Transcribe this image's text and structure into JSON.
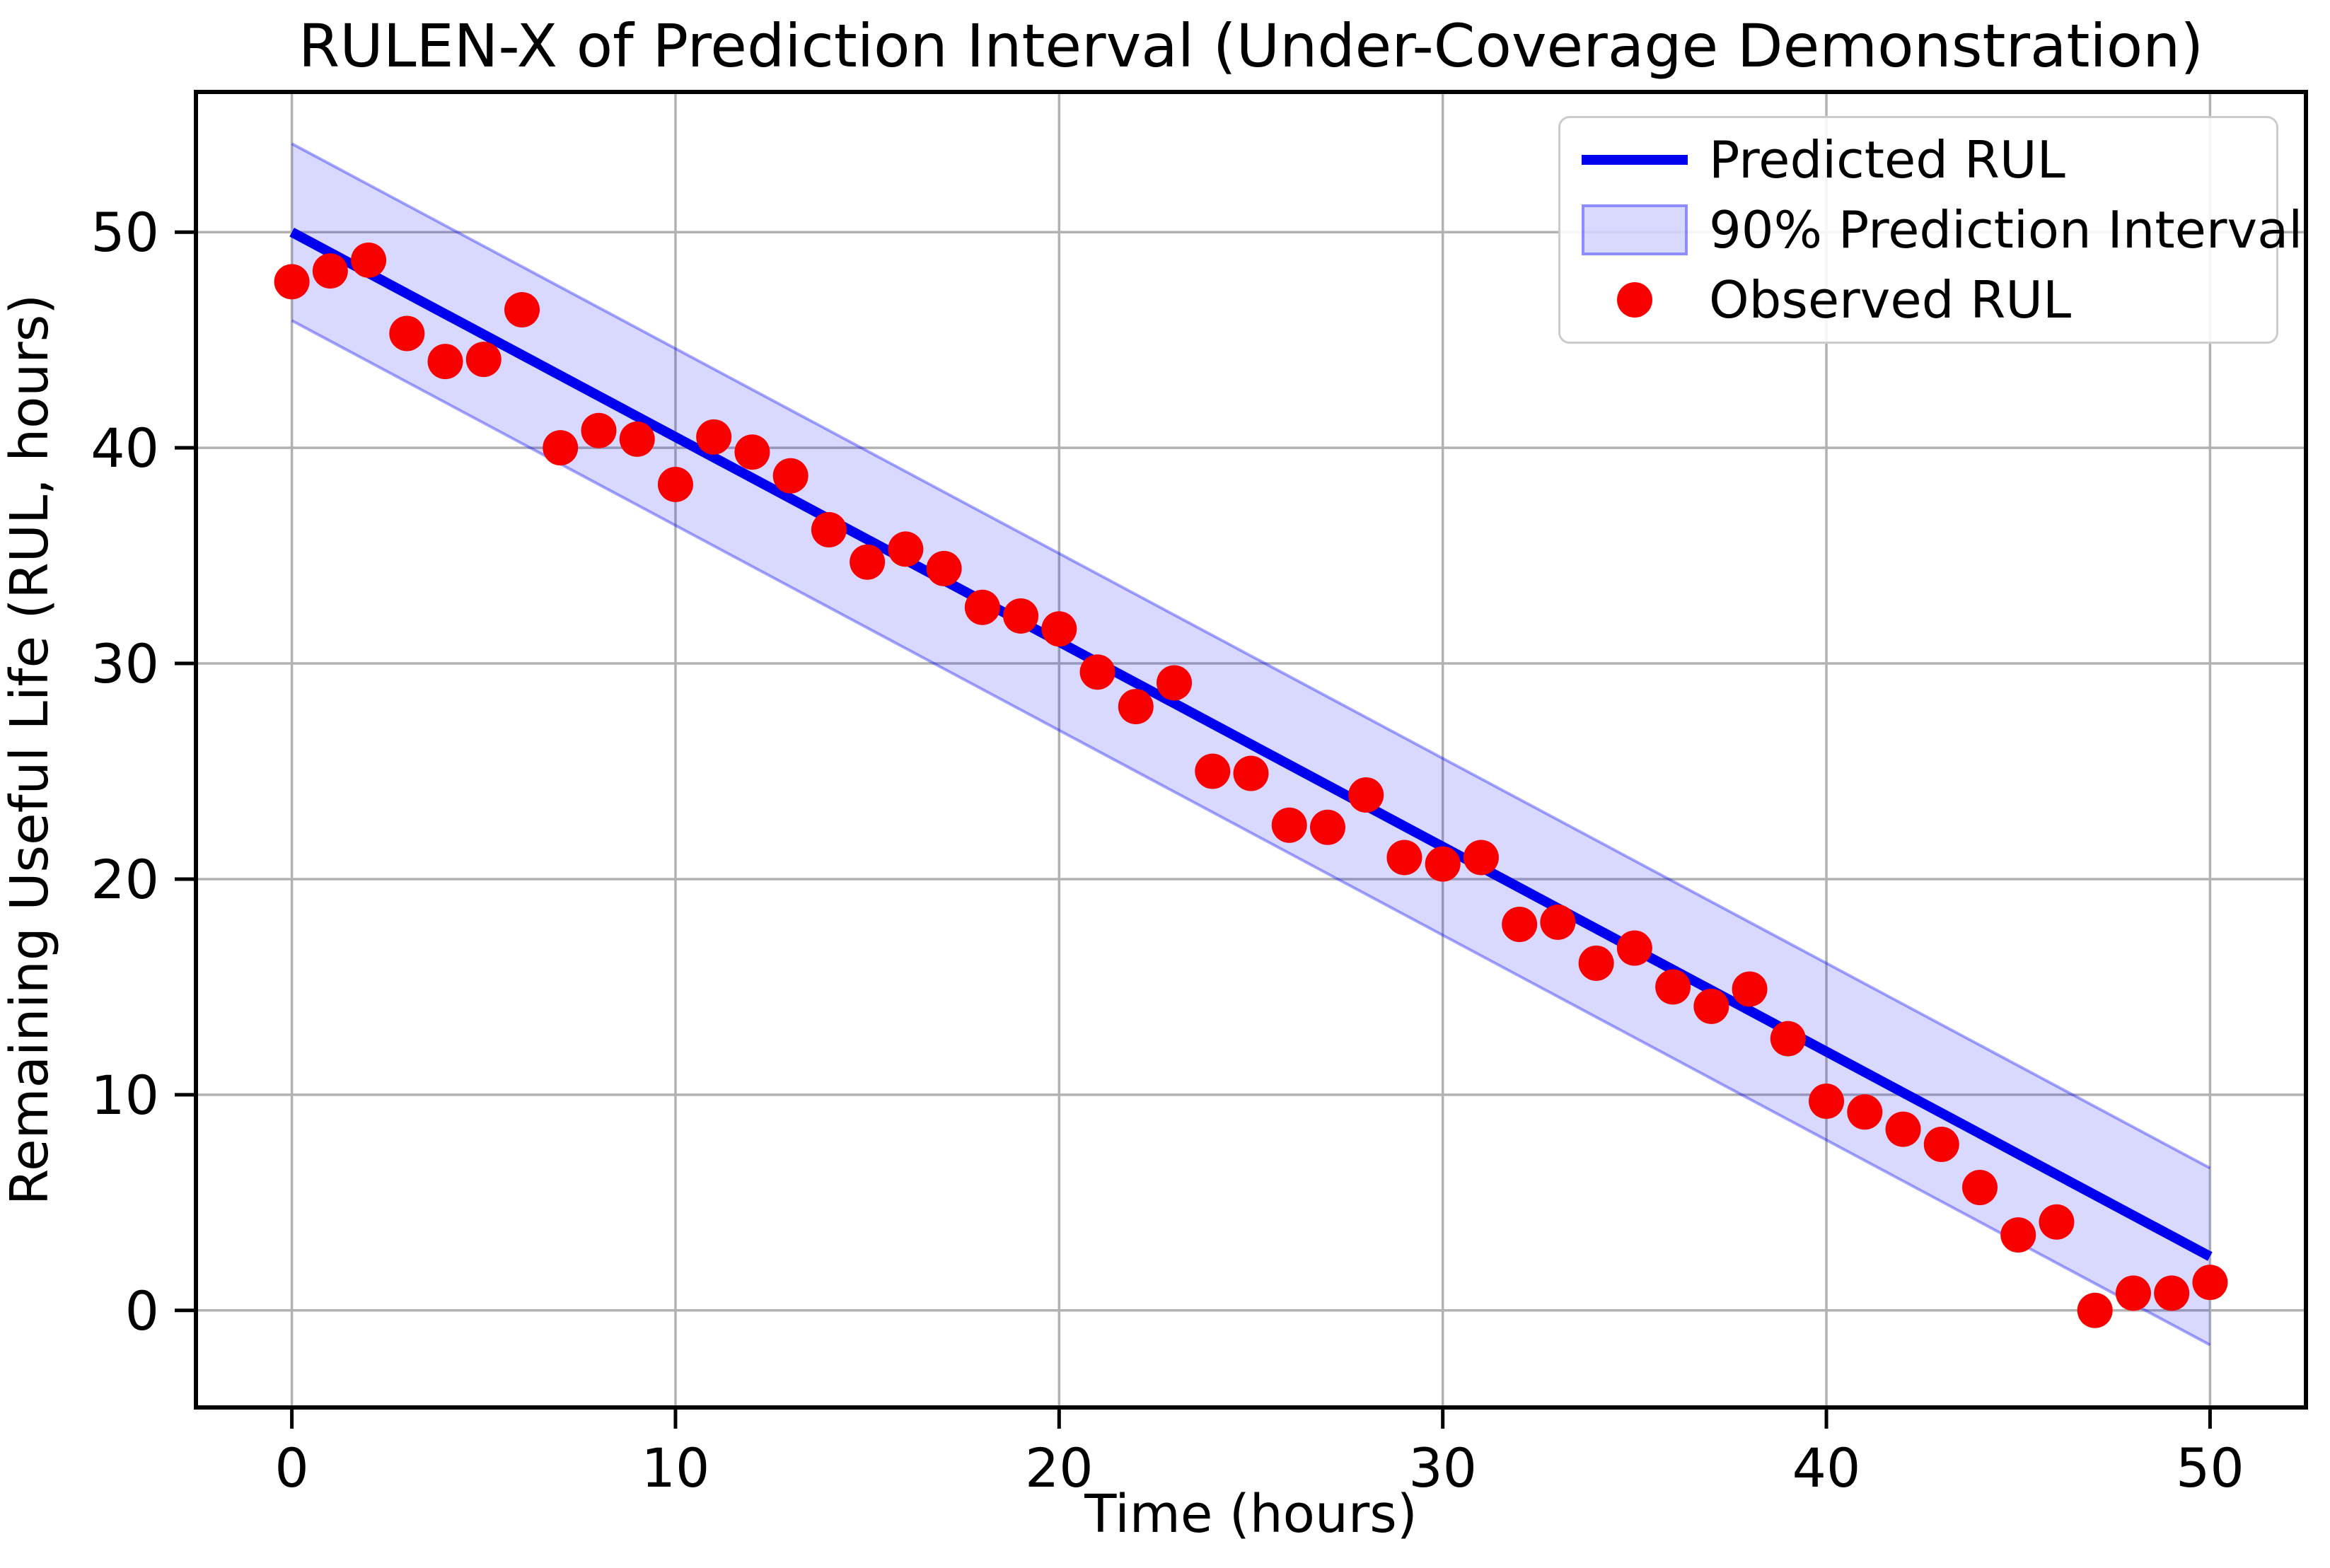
{
  "chart_data": {
    "type": "line",
    "title": "RULEN-X of Prediction Interval (Under-Coverage Demonstration)",
    "xlabel": "Time (hours)",
    "ylabel": "Remaining Useful Life (RUL, hours)",
    "xlim": [
      -2.5,
      52.5
    ],
    "ylim": [
      -4.5,
      56.5
    ],
    "xticks": [
      0,
      10,
      20,
      30,
      40,
      50
    ],
    "yticks": [
      0,
      10,
      20,
      30,
      40,
      50
    ],
    "grid": true,
    "colors": {
      "predicted_line": "#0000ee",
      "interval_fill": "#0000ff",
      "interval_fill_opacity": 0.15,
      "interval_edge": "#0000ff",
      "interval_edge_opacity": 0.35,
      "observed": "#f80000",
      "grid": "#b2b2b2",
      "spine": "#000000",
      "text": "#000000"
    },
    "legend": {
      "position": "upper-right",
      "entries": [
        "Predicted RUL",
        "90% Prediction Interval",
        "Observed RUL"
      ]
    },
    "series": [
      {
        "name": "Predicted RUL",
        "type": "line",
        "x": [
          0,
          50
        ],
        "y": [
          50,
          2.5
        ]
      },
      {
        "name": "90% Prediction Interval",
        "type": "band",
        "x": [
          0,
          50
        ],
        "upper": [
          54.1,
          6.6
        ],
        "lower": [
          45.9,
          -1.6
        ]
      },
      {
        "name": "Observed RUL",
        "type": "scatter",
        "x": [
          0,
          1,
          2,
          3,
          4,
          5,
          6,
          7,
          8,
          9,
          10,
          11,
          12,
          13,
          14,
          15,
          16,
          17,
          18,
          19,
          20,
          21,
          22,
          23,
          24,
          25,
          26,
          27,
          28,
          29,
          30,
          31,
          32,
          33,
          34,
          35,
          36,
          37,
          38,
          39,
          40,
          41,
          42,
          43,
          44,
          45,
          46,
          47,
          48,
          49,
          50
        ],
        "y": [
          47.7,
          48.2,
          48.7,
          45.3,
          44.0,
          44.1,
          46.4,
          40.0,
          40.8,
          40.4,
          38.3,
          40.5,
          39.8,
          38.7,
          36.2,
          34.7,
          35.3,
          34.4,
          32.6,
          32.2,
          31.6,
          29.6,
          28.0,
          29.1,
          25.0,
          24.9,
          22.5,
          22.4,
          23.9,
          21.0,
          20.7,
          21.0,
          17.9,
          18.0,
          16.1,
          16.8,
          15.0,
          14.1,
          14.9,
          12.6,
          9.7,
          9.2,
          8.4,
          7.7,
          5.7,
          3.5,
          4.1,
          0.0,
          0.8,
          0.8,
          1.3
        ]
      }
    ]
  }
}
